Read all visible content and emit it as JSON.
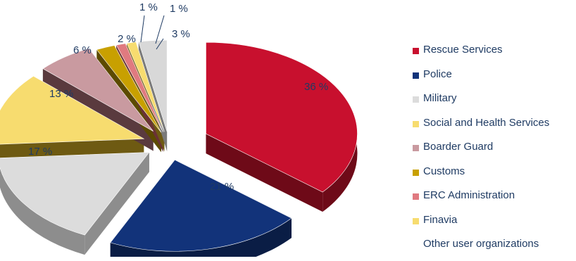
{
  "chart_data": {
    "type": "pie",
    "series": [
      {
        "name": "Rescue Services",
        "value": 36,
        "label": "36 %",
        "color": "#c8102e",
        "side": "#6e0a18"
      },
      {
        "name": "Police",
        "value": 21,
        "label": "21 %",
        "color": "#12337a",
        "side": "#0a1d45"
      },
      {
        "name": "Military",
        "value": 17,
        "label": "17 %",
        "color": "#dcdcdc",
        "side": "#8d8d8d"
      },
      {
        "name": "Social and Health Services",
        "value": 13,
        "label": "13 %",
        "color": "#f7dc6f",
        "side": "#6e5a12"
      },
      {
        "name": "Boarder Guard",
        "value": 6,
        "label": "6 %",
        "color": "#c99aa0",
        "side": "#5a3a3e"
      },
      {
        "name": "Customs",
        "value": 2,
        "label": "2 %",
        "color": "#c8a000",
        "side": "#5c4a00"
      },
      {
        "name": "ERC Administration",
        "value": 1,
        "label": "1 %",
        "color": "#e07a80",
        "side": "#6a3236"
      },
      {
        "name": "Finavia",
        "value": 1,
        "label": "1 %",
        "color": "#f7dc6f",
        "side": "#6e5a12"
      },
      {
        "name": "Other user organizations",
        "value": 3,
        "label": "3 %",
        "color": "#d8d8d8",
        "side": "#7a7a7a"
      }
    ]
  }
}
